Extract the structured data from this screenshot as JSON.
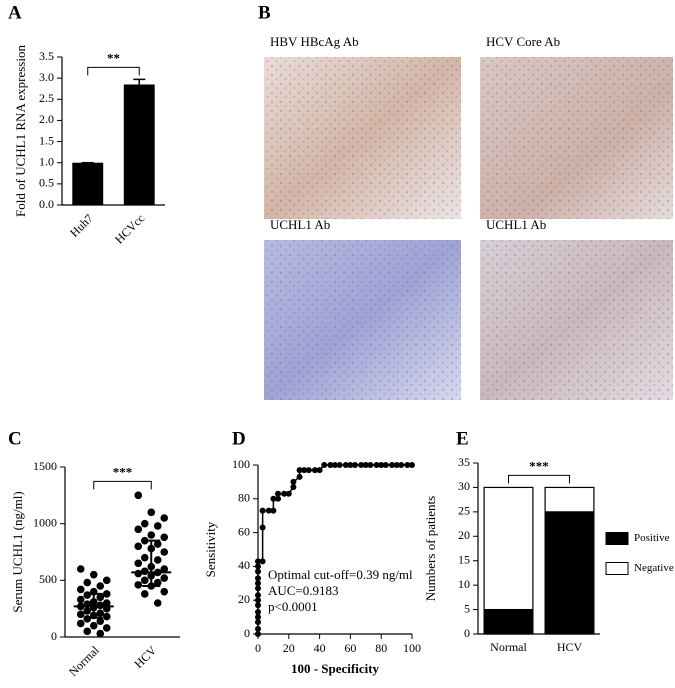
{
  "chart_data": [
    {
      "type": "bar",
      "panel": "A",
      "ylabel": "Fold of UCHL1 RNA expression",
      "categories": [
        "Huh7",
        "HCVcc"
      ],
      "values": [
        1.0,
        2.85
      ],
      "errors": [
        0,
        0.12
      ],
      "color": "#000000",
      "ylim": [
        0,
        3.5
      ],
      "yticks": [
        {
          "value": 0,
          "label": "0.0"
        },
        0.5,
        {
          "value": 1,
          "label": "1.0"
        },
        1.5,
        {
          "value": 2,
          "label": "2.0"
        },
        2.5,
        {
          "value": 3,
          "label": "3.0"
        },
        3.5
      ],
      "annotation": "**"
    },
    {
      "type": "dot-plot",
      "panel": "C",
      "ylabel": "Serum UCHL1 (ng/ml)",
      "categories": [
        "Normal",
        "HCV"
      ],
      "values": [
        [
          600,
          550,
          500,
          480,
          450,
          420,
          400,
          380,
          370,
          350,
          330,
          310,
          300,
          290,
          280,
          270,
          260,
          250,
          230,
          210,
          200,
          190,
          180,
          160,
          140,
          120,
          100,
          80,
          50,
          30
        ],
        [
          1250,
          1100,
          1050,
          1000,
          980,
          950,
          900,
          880,
          850,
          820,
          800,
          780,
          750,
          700,
          680,
          650,
          620,
          600,
          580,
          570,
          560,
          540,
          520,
          500,
          480,
          460,
          450,
          400,
          380,
          300
        ]
      ],
      "medians": [
        270,
        570
      ],
      "iqr": [
        [
          170,
          380
        ],
        [
          450,
          850
        ]
      ],
      "color": "#000000",
      "ylim": [
        0,
        1500
      ],
      "yticks": [
        0,
        500,
        1000,
        1500
      ],
      "annotation": "***"
    },
    {
      "type": "line",
      "panel": "D",
      "xlabel": "100 - Specificity",
      "ylabel": "Sensitivity",
      "x": [
        0,
        0,
        0,
        0,
        0,
        0,
        0,
        0,
        0,
        0,
        0,
        0,
        0,
        0,
        3,
        3,
        3,
        7,
        10,
        10,
        13,
        13,
        17,
        20,
        23,
        23,
        27,
        27,
        30,
        33,
        37,
        40,
        43,
        47,
        50,
        53,
        57,
        60,
        63,
        67,
        70,
        73,
        77,
        80,
        83,
        87,
        90,
        93,
        97,
        100
      ],
      "y": [
        0,
        3,
        7,
        10,
        13,
        17,
        20,
        23,
        27,
        30,
        33,
        37,
        40,
        43,
        43,
        63,
        73,
        73,
        73,
        80,
        80,
        83,
        83,
        83,
        87,
        90,
        93,
        97,
        97,
        97,
        97,
        97,
        100,
        100,
        100,
        100,
        100,
        100,
        100,
        100,
        100,
        100,
        100,
        100,
        100,
        100,
        100,
        100,
        100,
        100
      ],
      "color": "#000000",
      "xlim": [
        0,
        100
      ],
      "ylim": [
        0,
        100
      ],
      "xticks": [
        0,
        20,
        40,
        60,
        80,
        100
      ],
      "yticks": [
        0,
        20,
        40,
        60,
        80,
        100
      ],
      "annotations": [
        "Optimal cut-off=0.39 ng/ml",
        "AUC=0.9183",
        "p<0.0001"
      ]
    },
    {
      "type": "stacked-bar",
      "panel": "E",
      "ylabel": "Numbers of patients",
      "categories": [
        "Normal",
        "HCV"
      ],
      "series": [
        {
          "name": "Positive",
          "color": "#000000",
          "values": [
            5,
            25
          ]
        },
        {
          "name": "Negative",
          "color": "#ffffff",
          "values": [
            25,
            5
          ]
        }
      ],
      "ylim": [
        0,
        35
      ],
      "yticks": [
        0,
        5,
        10,
        15,
        20,
        25,
        30,
        35
      ],
      "legend": "right",
      "annotation": "***"
    }
  ],
  "panel_b": {
    "panel": "B",
    "images": [
      {
        "title": "HBV HBcAg  Ab"
      },
      {
        "title": "HCV Core Ab"
      },
      {
        "title": "UCHL1 Ab"
      },
      {
        "title": "UCHL1 Ab"
      }
    ]
  }
}
